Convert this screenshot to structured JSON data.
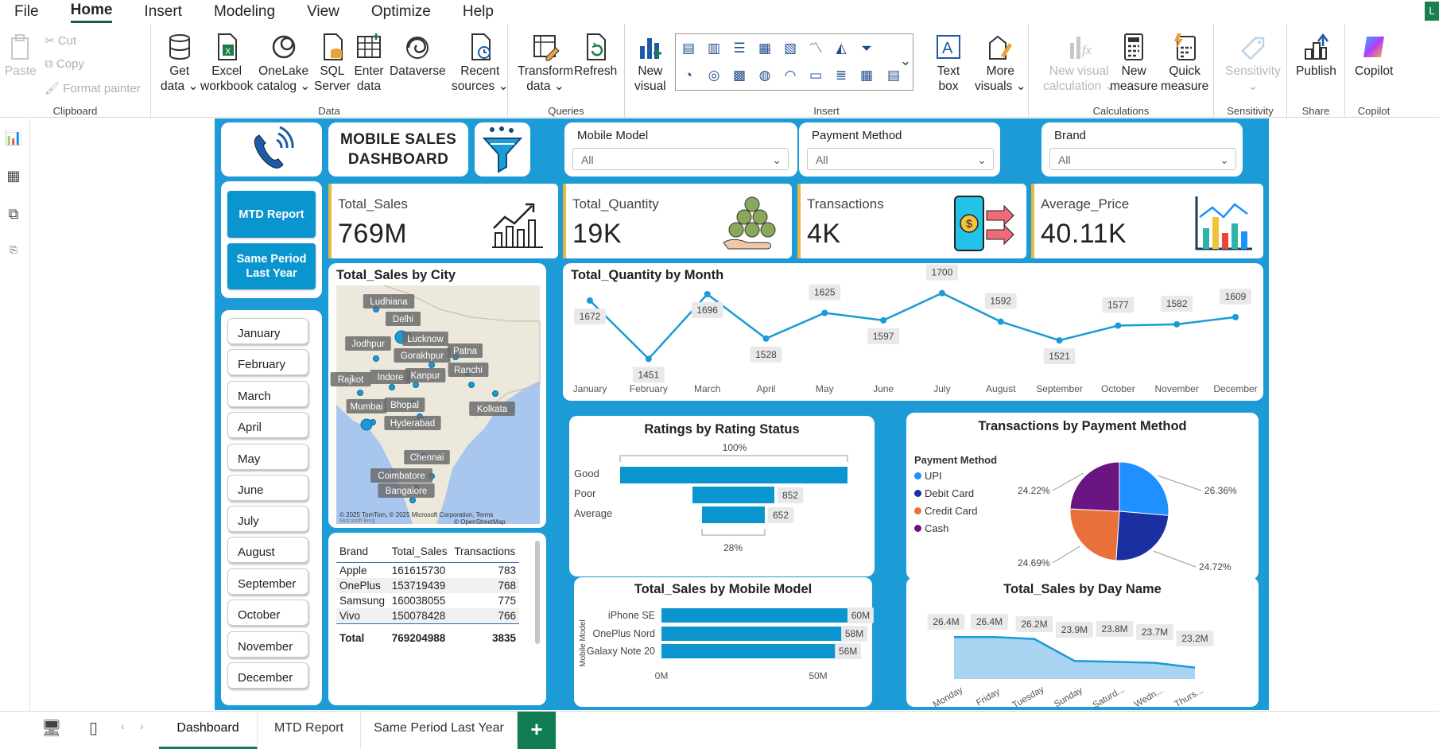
{
  "menu": {
    "items": [
      "File",
      "Home",
      "Insert",
      "Modeling",
      "View",
      "Optimize",
      "Help"
    ],
    "active": "Home",
    "user_initial": "L"
  },
  "ribbon": {
    "clipboard": {
      "label": "Clipboard",
      "paste": "Paste",
      "cut": "Cut",
      "copy": "Copy",
      "format_painter": "Format painter"
    },
    "data": {
      "label": "Data",
      "get_data": [
        "Get",
        "data ⌄"
      ],
      "excel": [
        "Excel",
        "workbook"
      ],
      "onelake": [
        "OneLake",
        "catalog ⌄"
      ],
      "sql": [
        "SQL",
        "Server"
      ],
      "enter": [
        "Enter",
        "data"
      ],
      "dataverse": "Dataverse",
      "recent": [
        "Recent",
        "sources ⌄"
      ]
    },
    "queries": {
      "label": "Queries",
      "transform": [
        "Transform",
        "data ⌄"
      ],
      "refresh": "Refresh"
    },
    "insert": {
      "label": "Insert",
      "new_visual": [
        "New",
        "visual"
      ],
      "text_box": [
        "Text",
        "box"
      ],
      "more_visuals": [
        "More",
        "visuals ⌄"
      ]
    },
    "calculations": {
      "label": "Calculations",
      "new_visual_calc": [
        "New visual",
        "calculation ⌄"
      ],
      "new_measure": [
        "New",
        "measure"
      ],
      "quick_measure": [
        "Quick",
        "measure"
      ]
    },
    "sensitivity": {
      "label": "Sensitivity",
      "button": [
        "Sensitivity",
        "⌄"
      ]
    },
    "share": {
      "label": "Share",
      "publish": "Publish"
    },
    "copilot": {
      "label": "Copilot",
      "button": "Copilot"
    }
  },
  "dashboard": {
    "title": [
      "MOBILE SALES",
      "DASHBOARD"
    ],
    "nav": {
      "mtd": "MTD Report",
      "spl": [
        "Same Period",
        "Last Year"
      ]
    },
    "months": [
      "January",
      "February",
      "March",
      "April",
      "May",
      "June",
      "July",
      "August",
      "September",
      "October",
      "November",
      "December"
    ],
    "slicers": [
      {
        "title": "Mobile Model",
        "value": "All"
      },
      {
        "title": "Payment Method",
        "value": "All"
      },
      {
        "title": "Brand",
        "value": "All"
      }
    ],
    "kpis": [
      {
        "label": "Total_Sales",
        "value": "769M"
      },
      {
        "label": "Total_Quantity",
        "value": "19K"
      },
      {
        "label": "Transactions",
        "value": "4K"
      },
      {
        "label": "Average_Price",
        "value": "40.11K"
      }
    ],
    "map": {
      "title": "Total_Sales by City",
      "cities": [
        "Ludhiana",
        "Delhi",
        "Lucknow",
        "Jodhpur",
        "Gorakhpur",
        "Patna",
        "Rajkot",
        "Indore",
        "Kanpur",
        "Ranchi",
        "Mumbai",
        "Bhopal",
        "Kolkata",
        "Hyderabad",
        "Chennai",
        "Coimbatore",
        "Bangalore"
      ],
      "attribution": "© 2025 TomTom, © 2025 Microsoft Corporation,",
      "terms": "Terms",
      "osm": "© OpenStreetMap",
      "bing": "Microsoft Bing"
    },
    "table": {
      "headers": [
        "Brand",
        "Total_Sales",
        "Transactions"
      ],
      "rows": [
        [
          "Apple",
          "161615730",
          "783"
        ],
        [
          "OnePlus",
          "153719439",
          "768"
        ],
        [
          "Samsung",
          "160038055",
          "775"
        ],
        [
          "Vivo",
          "150078428",
          "766"
        ]
      ],
      "total": [
        "Total",
        "769204988",
        "3835"
      ]
    }
  },
  "charts": {
    "month_line": {
      "type": "line",
      "title": "Total_Quantity by Month",
      "x": [
        "January",
        "February",
        "March",
        "April",
        "May",
        "June",
        "July",
        "August",
        "September",
        "October",
        "November",
        "December"
      ],
      "values": [
        1672,
        1451,
        1696,
        1528,
        1625,
        1597,
        1700,
        1592,
        1521,
        1577,
        1582,
        1609
      ],
      "color": "#1a9ad6"
    },
    "ratings": {
      "type": "bar",
      "title": "Ratings by Rating Status",
      "categories": [
        "Good",
        "Poor",
        "Average"
      ],
      "percent_top": "100%",
      "percent_bottom": "28%",
      "labels": [
        "",
        "852",
        "652"
      ],
      "color": "#0b95cf"
    },
    "payment": {
      "type": "pie",
      "title": "Transactions by Payment Method",
      "legend_title": "Payment Method",
      "categories": [
        "UPI",
        "Debit Card",
        "Credit Card",
        "Cash"
      ],
      "percents": [
        26.36,
        24.72,
        24.69,
        24.22
      ],
      "labels": [
        "26.36%",
        "24.72%",
        "24.69%",
        "24.22%"
      ],
      "colors": [
        "#1e90ff",
        "#1a2fa0",
        "#e8703a",
        "#6b1583"
      ]
    },
    "mobile_model": {
      "type": "bar",
      "title": "Total_Sales by Mobile Model",
      "categories": [
        "iPhone SE",
        "OnePlus Nord",
        "Galaxy Note 20"
      ],
      "values": [
        60,
        58,
        56
      ],
      "labels": [
        "60M",
        "58M",
        "56M"
      ],
      "ylabel": "Mobile Model",
      "ticks": [
        "0M",
        "50M"
      ],
      "color": "#0b95cf"
    },
    "day_name": {
      "type": "area",
      "title": "Total_Sales by Day Name",
      "x": [
        "Monday",
        "Friday",
        "Tuesday",
        "Sunday",
        "Saturd...",
        "Wedn...",
        "Thurs..."
      ],
      "values": [
        26.4,
        26.4,
        26.2,
        23.9,
        23.8,
        23.7,
        23.2
      ],
      "labels": [
        "26.4M",
        "26.4M",
        "26.2M",
        "23.9M",
        "23.8M",
        "23.7M",
        "23.2M"
      ],
      "color": "#1a9ad6"
    }
  },
  "tabs": [
    "Dashboard",
    "MTD Report",
    "Same Period Last Year"
  ],
  "active_tab": "Dashboard",
  "add_tab": "+"
}
